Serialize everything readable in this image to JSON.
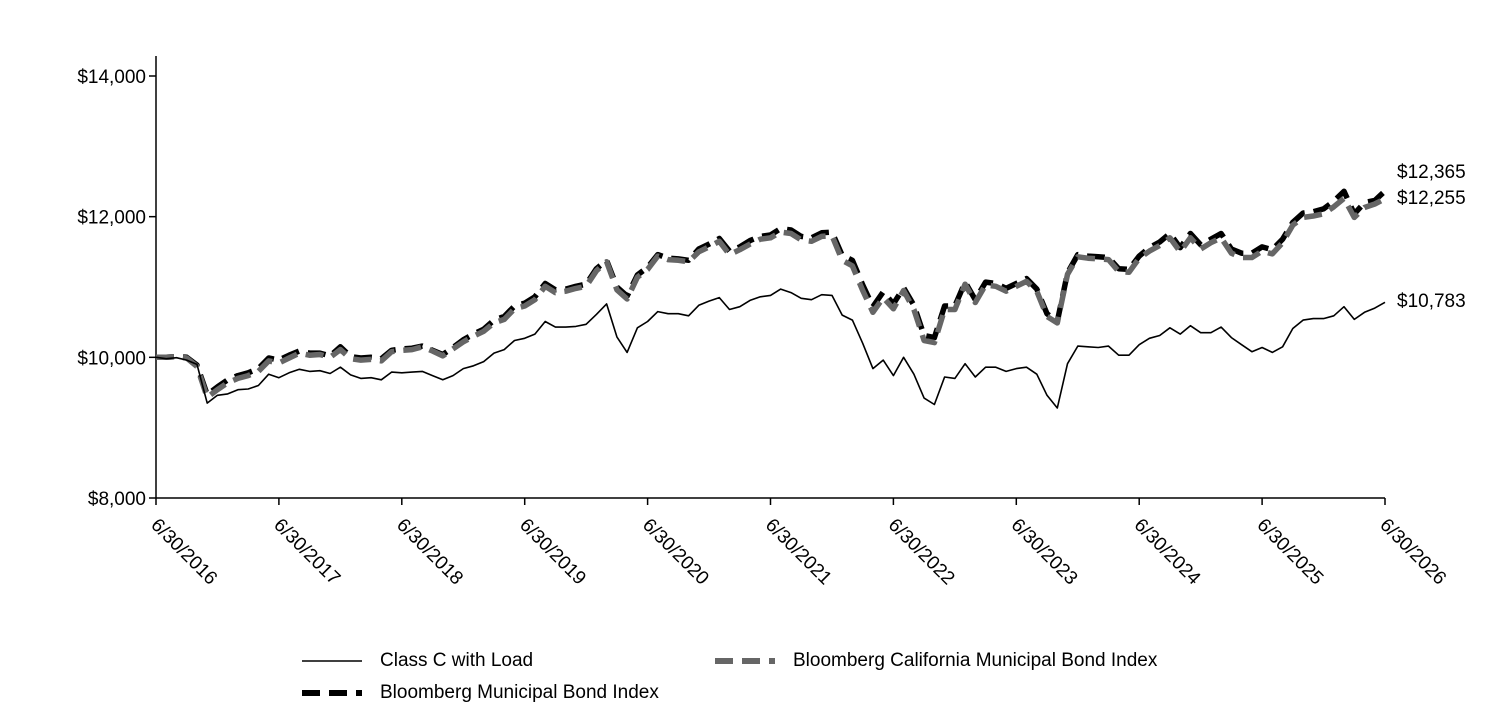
{
  "chart_data": {
    "type": "line",
    "ylim": [
      8000,
      14000
    ],
    "y_ticks": [
      {
        "value": 8000,
        "label": "$8,000"
      },
      {
        "value": 10000,
        "label": "$10,000"
      },
      {
        "value": 12000,
        "label": "$12,000"
      },
      {
        "value": 14000,
        "label": "$14,000"
      }
    ],
    "x_ticks": [
      "6/30/2016",
      "6/30/2017",
      "6/30/2018",
      "6/30/2019",
      "6/30/2020",
      "6/30/2021",
      "6/30/2022",
      "6/30/2023",
      "6/30/2024",
      "6/30/2025",
      "6/30/2026"
    ],
    "legend_placement": "bottom",
    "grid": false,
    "series": [
      {
        "name": "Class C with Load",
        "style": "solid-thin",
        "color": "#000000",
        "end_label": "$10,783",
        "values": [
          10000,
          9980,
          9995,
          9960,
          9900,
          9350,
          9460,
          9480,
          9540,
          9550,
          9600,
          9760,
          9710,
          9780,
          9830,
          9800,
          9810,
          9770,
          9860,
          9750,
          9700,
          9710,
          9680,
          9790,
          9780,
          9790,
          9800,
          9740,
          9680,
          9740,
          9840,
          9880,
          9940,
          10060,
          10110,
          10240,
          10270,
          10330,
          10510,
          10430,
          10430,
          10440,
          10470,
          10610,
          10760,
          10290,
          10070,
          10420,
          10510,
          10650,
          10620,
          10620,
          10590,
          10740,
          10800,
          10850,
          10680,
          10720,
          10810,
          10860,
          10880,
          10970,
          10920,
          10840,
          10820,
          10890,
          10880,
          10600,
          10530,
          10200,
          9840,
          9960,
          9740,
          10000,
          9760,
          9420,
          9330,
          9720,
          9700,
          9910,
          9720,
          9860,
          9860,
          9800,
          9840,
          9860,
          9760,
          9460,
          9280,
          9910,
          10160,
          10150,
          10140,
          10160,
          10030,
          10030,
          10180,
          10270,
          10310,
          10420,
          10330,
          10450,
          10350,
          10350,
          10430,
          10280,
          10180,
          10080,
          10140,
          10070,
          10150,
          10410,
          10530,
          10550,
          10550,
          10590,
          10720,
          10540,
          10640,
          10700,
          10783
        ]
      },
      {
        "name": "Bloomberg Municipal Bond Index",
        "style": "dashed-thick",
        "color": "#000000",
        "end_label": "$12,365",
        "values": [
          10000,
          10000,
          10010,
          10000,
          9890,
          9470,
          9580,
          9680,
          9740,
          9780,
          9840,
          9990,
          9960,
          10030,
          10090,
          10060,
          10060,
          10020,
          10150,
          10010,
          9990,
          10000,
          9980,
          10100,
          10120,
          10130,
          10160,
          10100,
          10040,
          10140,
          10250,
          10330,
          10400,
          10530,
          10580,
          10730,
          10770,
          10860,
          11050,
          10960,
          10970,
          11010,
          11040,
          11260,
          11380,
          11000,
          10870,
          11170,
          11280,
          11460,
          11410,
          11400,
          11380,
          11540,
          11610,
          11690,
          11510,
          11570,
          11660,
          11720,
          11740,
          11830,
          11810,
          11720,
          11700,
          11770,
          11780,
          11450,
          11380,
          11030,
          10720,
          10930,
          10760,
          10990,
          10740,
          10310,
          10280,
          10730,
          10730,
          11070,
          10820,
          11070,
          11050,
          10980,
          11050,
          11120,
          10970,
          10620,
          10510,
          11200,
          11460,
          11440,
          11430,
          11420,
          11260,
          11250,
          11440,
          11560,
          11640,
          11760,
          11560,
          11760,
          11600,
          11680,
          11760,
          11540,
          11480,
          11480,
          11570,
          11530,
          11680,
          11920,
          12050,
          12070,
          12110,
          12220,
          12360,
          12040,
          12200,
          12230,
          12365
        ]
      },
      {
        "name": "Bloomberg California Municipal Bond Index",
        "style": "dashed-thick",
        "color": "#666666",
        "end_label": "$12,255",
        "values": [
          10000,
          10000,
          10010,
          9990,
          9870,
          9430,
          9540,
          9640,
          9700,
          9740,
          9800,
          9950,
          9920,
          9990,
          10060,
          10030,
          10040,
          10000,
          10110,
          9980,
          9960,
          9970,
          9950,
          10080,
          10100,
          10110,
          10150,
          10090,
          10020,
          10120,
          10220,
          10300,
          10370,
          10490,
          10540,
          10690,
          10730,
          10820,
          11010,
          10920,
          10940,
          10980,
          11010,
          11230,
          11360,
          10960,
          10830,
          11140,
          11250,
          11440,
          11390,
          11380,
          11360,
          11500,
          11570,
          11650,
          11460,
          11530,
          11610,
          11680,
          11700,
          11780,
          11760,
          11670,
          11650,
          11720,
          11730,
          11380,
          11300,
          10950,
          10640,
          10850,
          10690,
          10950,
          10680,
          10240,
          10210,
          10680,
          10680,
          11040,
          10780,
          11030,
          11010,
          10940,
          11010,
          11080,
          10940,
          10580,
          10490,
          11180,
          11430,
          11410,
          11400,
          11390,
          11220,
          11210,
          11410,
          11510,
          11590,
          11700,
          11500,
          11700,
          11540,
          11630,
          11700,
          11480,
          11420,
          11420,
          11510,
          11470,
          11630,
          11880,
          11990,
          12010,
          12040,
          12140,
          12260,
          11990,
          12130,
          12180,
          12255
        ]
      }
    ]
  }
}
